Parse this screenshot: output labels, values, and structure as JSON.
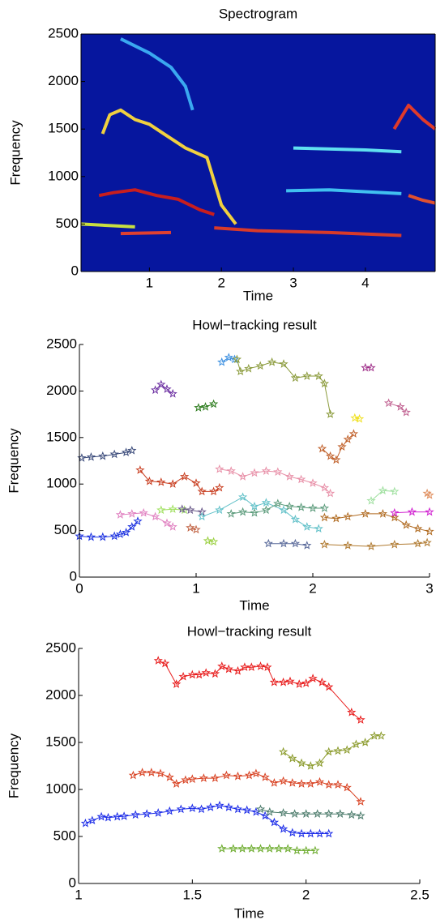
{
  "chart_data": [
    {
      "type": "spectrogram",
      "title": "Spectrogram",
      "x_label": "Time",
      "y_label": "Frequency",
      "background": "#06169e",
      "xlim": [
        0.05,
        4.97
      ],
      "xticks": [
        1,
        2,
        3,
        4
      ],
      "ylim": [
        0,
        2500
      ],
      "yticks": [
        0,
        500,
        1000,
        1500,
        2000,
        2500
      ],
      "series": [
        {
          "color": "#f0d040",
          "x": [
            0.35,
            0.45,
            0.6,
            0.8,
            1.0,
            1.2,
            1.5,
            1.8,
            2.0,
            2.2
          ],
          "values": [
            1450,
            1650,
            1700,
            1600,
            1550,
            1450,
            1300,
            1200,
            700,
            500
          ]
        },
        {
          "color": "#c81e1e",
          "x": [
            0.3,
            0.5,
            0.8,
            1.1,
            1.4,
            1.7,
            1.9
          ],
          "values": [
            800,
            830,
            860,
            800,
            760,
            650,
            600
          ]
        },
        {
          "color": "#d83a2a",
          "x": [
            1.9,
            2.5,
            3.5,
            4.5
          ],
          "values": [
            460,
            430,
            410,
            380
          ]
        },
        {
          "color": "#c8e040",
          "x": [
            0.05,
            0.8
          ],
          "values": [
            500,
            470
          ]
        },
        {
          "color": "#e04030",
          "x": [
            0.6,
            1.3
          ],
          "values": [
            400,
            410
          ]
        },
        {
          "color": "#60e0f0",
          "x": [
            3.0,
            4.0,
            4.5
          ],
          "values": [
            1300,
            1280,
            1260
          ]
        },
        {
          "color": "#40c0f0",
          "x": [
            2.9,
            3.5,
            4.5
          ],
          "values": [
            850,
            860,
            820
          ]
        },
        {
          "color": "#e03a2a",
          "x": [
            4.4,
            4.6,
            4.8,
            4.97
          ],
          "values": [
            1500,
            1750,
            1600,
            1500
          ]
        },
        {
          "color": "#e05030",
          "x": [
            4.6,
            4.8,
            4.97
          ],
          "values": [
            800,
            750,
            720
          ]
        },
        {
          "color": "#3aa8f0",
          "x": [
            0.6,
            1.0,
            1.3,
            1.5,
            1.6
          ],
          "values": [
            2450,
            2300,
            2150,
            1950,
            1700
          ]
        }
      ]
    },
    {
      "type": "track",
      "title": "Howl−tracking result",
      "x_label": "Time",
      "y_label": "Frequency",
      "xlim": [
        0,
        3
      ],
      "xticks": [
        0,
        1,
        2,
        3
      ],
      "ylim": [
        0,
        2500
      ],
      "yticks": [
        0,
        500,
        1000,
        1500,
        2000,
        2500
      ],
      "series": [
        {
          "color": "#3a4a7a",
          "x": [
            0.02,
            0.1,
            0.2,
            0.3,
            0.4,
            0.45
          ],
          "values": [
            1280,
            1290,
            1300,
            1320,
            1340,
            1360
          ]
        },
        {
          "color": "#1a30e0",
          "x": [
            0,
            0.1,
            0.2,
            0.3,
            0.35,
            0.4,
            0.45,
            0.5
          ],
          "values": [
            440,
            430,
            430,
            440,
            460,
            480,
            540,
            600
          ]
        },
        {
          "color": "#c83c1e",
          "x": [
            0.52,
            0.6,
            0.7,
            0.8,
            0.9,
            1.0,
            1.05,
            1.15,
            1.2
          ],
          "values": [
            1150,
            1030,
            1020,
            1000,
            1080,
            1010,
            920,
            920,
            960
          ]
        },
        {
          "color": "#6a2ca0",
          "x": [
            0.65,
            0.7,
            0.75,
            0.8
          ],
          "values": [
            2010,
            2070,
            2020,
            1970
          ]
        },
        {
          "color": "#2a7a1a",
          "x": [
            1.02,
            1.08,
            1.15
          ],
          "values": [
            1820,
            1830,
            1860
          ]
        },
        {
          "color": "#3a8ee0",
          "x": [
            1.22,
            1.28,
            1.33
          ],
          "values": [
            2310,
            2360,
            2340
          ]
        },
        {
          "color": "#8a9a3a",
          "x": [
            1.35,
            1.38,
            1.45,
            1.55,
            1.65,
            1.75,
            1.85,
            1.95,
            2.05,
            2.1,
            2.15
          ],
          "values": [
            2340,
            2210,
            2240,
            2270,
            2310,
            2290,
            2140,
            2160,
            2160,
            2080,
            1750
          ]
        },
        {
          "color": "#e080c0",
          "x": [
            0.35,
            0.45,
            0.55,
            0.65,
            0.75,
            0.8
          ],
          "values": [
            670,
            680,
            690,
            650,
            580,
            540
          ]
        },
        {
          "color": "#a0e060",
          "x": [
            0.7,
            0.8,
            0.9
          ],
          "values": [
            720,
            730,
            720
          ]
        },
        {
          "color": "#6a5a8a",
          "x": [
            0.88,
            0.95,
            1.05
          ],
          "values": [
            730,
            720,
            700
          ]
        },
        {
          "color": "#e890a8",
          "x": [
            1.2,
            1.3,
            1.4,
            1.5,
            1.6,
            1.7,
            1.8,
            1.9,
            2.0,
            2.1,
            2.15
          ],
          "values": [
            1160,
            1140,
            1080,
            1120,
            1140,
            1130,
            1080,
            1050,
            1010,
            960,
            900
          ]
        },
        {
          "color": "#60c0c8",
          "x": [
            1.05,
            1.2,
            1.4,
            1.5,
            1.6,
            1.75,
            1.85,
            1.95,
            2.05
          ],
          "values": [
            650,
            720,
            860,
            760,
            800,
            720,
            620,
            540,
            520
          ]
        },
        {
          "color": "#5a9a7a",
          "x": [
            1.3,
            1.4,
            1.5,
            1.6,
            1.7,
            1.8,
            1.9,
            2.0,
            2.1
          ],
          "values": [
            680,
            700,
            690,
            720,
            790,
            760,
            750,
            740,
            740
          ]
        },
        {
          "color": "#5a6a9a",
          "x": [
            1.62,
            1.75,
            1.85,
            1.95
          ],
          "values": [
            360,
            360,
            360,
            340
          ]
        },
        {
          "color": "#b06a20",
          "x": [
            2.1,
            2.2,
            2.3,
            2.45,
            2.6,
            2.7,
            2.8,
            2.9,
            3.0
          ],
          "values": [
            640,
            630,
            650,
            680,
            680,
            640,
            560,
            520,
            490
          ]
        },
        {
          "color": "#b07a30",
          "x": [
            2.1,
            2.3,
            2.5,
            2.7,
            2.9,
            2.98
          ],
          "values": [
            350,
            340,
            330,
            350,
            360,
            370
          ]
        },
        {
          "color": "#c0602a",
          "x": [
            2.08,
            2.15,
            2.2,
            2.25,
            2.3,
            2.35
          ],
          "values": [
            1380,
            1300,
            1260,
            1400,
            1480,
            1540
          ]
        },
        {
          "color": "#f0e020",
          "x": [
            2.36,
            2.4
          ],
          "values": [
            1710,
            1700
          ]
        },
        {
          "color": "#c06090",
          "x": [
            2.65,
            2.75,
            2.8
          ],
          "values": [
            1870,
            1830,
            1770
          ]
        },
        {
          "color": "#d020d0",
          "x": [
            2.7,
            2.85,
            3.0
          ],
          "values": [
            690,
            700,
            700
          ]
        },
        {
          "color": "#a0e0a0",
          "x": [
            2.5,
            2.6,
            2.7
          ],
          "values": [
            820,
            930,
            920
          ]
        },
        {
          "color": "#a0308a",
          "x": [
            2.45,
            2.5
          ],
          "values": [
            2250,
            2250
          ]
        },
        {
          "color": "#e09060",
          "x": [
            2.98,
            3.0
          ],
          "values": [
            900,
            880
          ]
        },
        {
          "color": "#9ad040",
          "x": [
            1.1,
            1.15
          ],
          "values": [
            390,
            380
          ]
        },
        {
          "color": "#c06040",
          "x": [
            0.95,
            1.0
          ],
          "values": [
            530,
            510
          ]
        }
      ]
    },
    {
      "type": "track",
      "title": "Howl−tracking result",
      "x_label": "Time",
      "y_label": "Frequency",
      "xlim": [
        1,
        2.5
      ],
      "xticks": [
        1,
        1.5,
        2,
        2.5
      ],
      "ylim": [
        0,
        2500
      ],
      "yticks": [
        0,
        500,
        1000,
        1500,
        2000,
        2500
      ],
      "series": [
        {
          "color": "#1a2ae8",
          "x": [
            1.03,
            1.06,
            1.1,
            1.13,
            1.17,
            1.2,
            1.25,
            1.3,
            1.35,
            1.4,
            1.45,
            1.5,
            1.54,
            1.58,
            1.62,
            1.66,
            1.7,
            1.74,
            1.78,
            1.82,
            1.86,
            1.9,
            1.94,
            1.98,
            2.02,
            2.06,
            2.1
          ],
          "values": [
            640,
            670,
            710,
            700,
            710,
            715,
            730,
            740,
            750,
            770,
            790,
            800,
            790,
            810,
            830,
            810,
            790,
            780,
            760,
            720,
            650,
            580,
            540,
            530,
            530,
            530,
            530
          ]
        },
        {
          "color": "#e81a1a",
          "x": [
            1.35,
            1.38,
            1.43,
            1.46,
            1.5,
            1.53,
            1.56,
            1.6,
            1.63,
            1.66,
            1.7,
            1.73,
            1.76,
            1.8,
            1.83,
            1.86,
            1.9,
            1.93,
            1.97,
            2.0,
            2.03,
            2.07,
            2.1,
            2.2,
            2.24
          ],
          "values": [
            2370,
            2340,
            2120,
            2200,
            2220,
            2220,
            2240,
            2230,
            2310,
            2280,
            2260,
            2300,
            2300,
            2310,
            2300,
            2140,
            2140,
            2150,
            2120,
            2130,
            2180,
            2140,
            2090,
            1820,
            1740
          ]
        },
        {
          "color": "#d84020",
          "x": [
            1.24,
            1.28,
            1.32,
            1.36,
            1.4,
            1.43,
            1.47,
            1.5,
            1.55,
            1.6,
            1.65,
            1.7,
            1.75,
            1.78,
            1.82,
            1.86,
            1.9,
            1.94,
            1.98,
            2.02,
            2.06,
            2.1,
            2.14,
            2.18,
            2.24
          ],
          "values": [
            1150,
            1180,
            1180,
            1170,
            1130,
            1060,
            1100,
            1110,
            1120,
            1120,
            1150,
            1140,
            1150,
            1170,
            1130,
            1070,
            1090,
            1070,
            1060,
            1060,
            1080,
            1050,
            1050,
            1020,
            870
          ]
        },
        {
          "color": "#8a9a2a",
          "x": [
            1.9,
            1.94,
            1.98,
            2.02,
            2.06,
            2.1,
            2.14,
            2.18,
            2.22,
            2.26,
            2.3,
            2.33
          ],
          "values": [
            1400,
            1330,
            1280,
            1250,
            1280,
            1400,
            1410,
            1420,
            1480,
            1500,
            1570,
            1570
          ]
        },
        {
          "color": "#4a7a6a",
          "x": [
            1.8,
            1.84,
            1.9,
            1.95,
            2.0,
            2.05,
            2.1,
            2.15,
            2.2,
            2.24
          ],
          "values": [
            790,
            760,
            750,
            740,
            740,
            740,
            740,
            740,
            730,
            720
          ]
        },
        {
          "color": "#6aaa2a",
          "x": [
            1.63,
            1.68,
            1.72,
            1.76,
            1.8,
            1.84,
            1.88,
            1.92,
            1.96,
            2.0,
            2.04
          ],
          "values": [
            370,
            370,
            370,
            370,
            370,
            370,
            370,
            370,
            350,
            350,
            350
          ]
        }
      ]
    }
  ]
}
